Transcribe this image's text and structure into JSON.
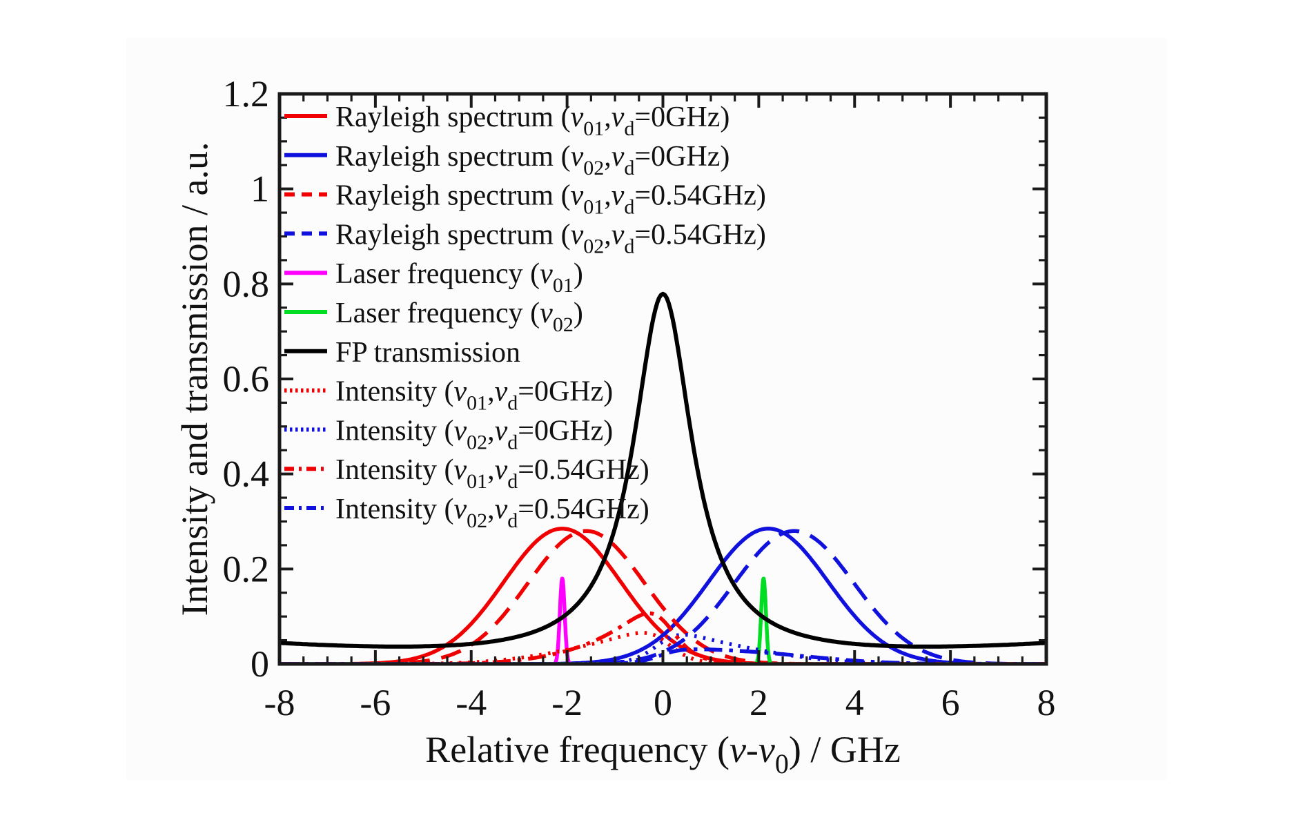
{
  "figure": {
    "background": "#ffffff",
    "panel_color": "#fcfcfc",
    "axis_color": "#1a1a1a"
  },
  "chart_data": {
    "type": "line",
    "title": "",
    "xlabel_parts": [
      [
        "t",
        "Relative frequency ("
      ],
      [
        "i",
        "ν"
      ],
      [
        "t",
        "-"
      ],
      [
        "i",
        "ν"
      ],
      [
        "sub",
        "0"
      ],
      [
        "t",
        ") / GHz"
      ]
    ],
    "ylabel": "Intensity and transmission / a.u.",
    "xlim": [
      -8,
      8
    ],
    "ylim": [
      0,
      1.2
    ],
    "x_tick_values": [
      -8,
      -6,
      -4,
      -2,
      0,
      2,
      4,
      6,
      8
    ],
    "x_tick_labels": [
      "-8",
      "-6",
      "-4",
      "-2",
      "0",
      "2",
      "4",
      "6",
      "8"
    ],
    "y_tick_values": [
      0,
      0.2,
      0.4,
      0.6,
      0.8,
      1,
      1.2
    ],
    "y_tick_labels": [
      "0",
      "0.2",
      "0.4",
      "0.6",
      "0.8",
      "1",
      "1.2"
    ],
    "x_minor_step": 0.5,
    "y_minor_step": 0.05,
    "grid": false,
    "legend_position": "inside-top-left",
    "series": [
      {
        "id": "rayleigh_v01_0",
        "color": "#f00000",
        "line": "solid",
        "width": 5.5,
        "label_parts": [
          [
            "t",
            "Rayleigh spectrum ("
          ],
          [
            "i",
            "ν"
          ],
          [
            "sub",
            "01"
          ],
          [
            "t",
            ","
          ],
          [
            "i",
            "ν"
          ],
          [
            "sub",
            "d"
          ],
          [
            "t",
            "=0GHz)"
          ]
        ],
        "model": {
          "shape": "gaussian",
          "center": -2.1,
          "peak": 0.285,
          "sigma": 1.22
        }
      },
      {
        "id": "rayleigh_v02_0",
        "color": "#1111dd",
        "line": "solid",
        "width": 5.5,
        "label_parts": [
          [
            "t",
            "Rayleigh spectrum ("
          ],
          [
            "i",
            "ν"
          ],
          [
            "sub",
            "02"
          ],
          [
            "t",
            ","
          ],
          [
            "i",
            "ν"
          ],
          [
            "sub",
            "d"
          ],
          [
            "t",
            "=0GHz)"
          ]
        ],
        "model": {
          "shape": "gaussian",
          "center": 2.2,
          "peak": 0.285,
          "sigma": 1.25
        }
      },
      {
        "id": "rayleigh_v01_054",
        "color": "#f00000",
        "line": "dashed",
        "width": 5.5,
        "label_parts": [
          [
            "t",
            "Rayleigh spectrum ("
          ],
          [
            "i",
            "ν"
          ],
          [
            "sub",
            "01"
          ],
          [
            "t",
            ","
          ],
          [
            "i",
            "ν"
          ],
          [
            "sub",
            "d"
          ],
          [
            "t",
            "=0.54GHz)"
          ]
        ],
        "model": {
          "shape": "gaussian",
          "center": -1.6,
          "peak": 0.28,
          "sigma": 1.22
        }
      },
      {
        "id": "rayleigh_v02_054",
        "color": "#1111dd",
        "line": "dashed",
        "width": 5.5,
        "label_parts": [
          [
            "t",
            "Rayleigh spectrum ("
          ],
          [
            "i",
            "ν"
          ],
          [
            "sub",
            "02"
          ],
          [
            "t",
            ","
          ],
          [
            "i",
            "ν"
          ],
          [
            "sub",
            "d"
          ],
          [
            "t",
            "=0.54GHz)"
          ]
        ],
        "model": {
          "shape": "gaussian",
          "center": 2.74,
          "peak": 0.28,
          "sigma": 1.25
        }
      },
      {
        "id": "laser_v01",
        "color": "#ff00ff",
        "line": "solid",
        "width": 5.5,
        "label_parts": [
          [
            "t",
            "Laser frequency ("
          ],
          [
            "i",
            "ν"
          ],
          [
            "sub",
            "01"
          ],
          [
            "t",
            ")"
          ]
        ],
        "model": {
          "shape": "gaussian",
          "center": -2.1,
          "peak": 0.18,
          "sigma": 0.05
        }
      },
      {
        "id": "laser_v02",
        "color": "#00dd22",
        "line": "solid",
        "width": 5.5,
        "label_parts": [
          [
            "t",
            "Laser frequency ("
          ],
          [
            "i",
            "ν"
          ],
          [
            "sub",
            "02"
          ],
          [
            "t",
            ")"
          ]
        ],
        "model": {
          "shape": "gaussian",
          "center": 2.1,
          "peak": 0.18,
          "sigma": 0.05
        }
      },
      {
        "id": "fp",
        "color": "#000000",
        "line": "solid",
        "width": 6,
        "label_parts": [
          [
            "t",
            "FP transmission"
          ]
        ],
        "model": {
          "shape": "airy",
          "center": 0,
          "amp": 0.77,
          "gamma": 0.75,
          "bg0": 0.009,
          "bg2": 0.00045,
          "peak": 0.78
        }
      },
      {
        "id": "int_v01_0",
        "color": "#f00000",
        "line": "dotted",
        "width": 5.5,
        "label_parts": [
          [
            "t",
            "Intensity ("
          ],
          [
            "i",
            "ν"
          ],
          [
            "sub",
            "01"
          ],
          [
            "t",
            ","
          ],
          [
            "i",
            "ν"
          ],
          [
            "sub",
            "d"
          ],
          [
            "t",
            "=0GHz)"
          ]
        ],
        "model": {
          "shape": "product",
          "factors": [
            "rayleigh_v01_0",
            "fp"
          ],
          "peak": 0.07,
          "peak_x": -0.5
        }
      },
      {
        "id": "int_v02_0",
        "color": "#1111dd",
        "line": "dotted",
        "width": 5.5,
        "label_parts": [
          [
            "t",
            "Intensity ("
          ],
          [
            "i",
            "ν"
          ],
          [
            "sub",
            "02"
          ],
          [
            "t",
            ","
          ],
          [
            "i",
            "ν"
          ],
          [
            "sub",
            "d"
          ],
          [
            "t",
            "=0GHz)"
          ]
        ],
        "model": {
          "shape": "product",
          "factors": [
            "rayleigh_v02_0",
            "fp"
          ],
          "peak": 0.058,
          "peak_x": 0.55
        }
      },
      {
        "id": "int_v01_054",
        "color": "#f00000",
        "line": "dashdot",
        "width": 5.5,
        "label_parts": [
          [
            "t",
            "Intensity ("
          ],
          [
            "i",
            "ν"
          ],
          [
            "sub",
            "01"
          ],
          [
            "t",
            ","
          ],
          [
            "i",
            "ν"
          ],
          [
            "sub",
            "d"
          ],
          [
            "t",
            "=0.54GHz)"
          ]
        ],
        "model": {
          "shape": "product",
          "factors": [
            "rayleigh_v01_054",
            "fp"
          ],
          "peak": 0.108,
          "peak_x": -0.3
        }
      },
      {
        "id": "int_v02_054",
        "color": "#1111dd",
        "line": "dashdot",
        "width": 5.5,
        "label_parts": [
          [
            "t",
            "Intensity ("
          ],
          [
            "i",
            "ν"
          ],
          [
            "sub",
            "02"
          ],
          [
            "t",
            ","
          ],
          [
            "i",
            "ν"
          ],
          [
            "sub",
            "d"
          ],
          [
            "t",
            "=0.54GHz)"
          ]
        ],
        "model": {
          "shape": "product",
          "factors": [
            "rayleigh_v02_054",
            "fp"
          ],
          "peak": 0.03,
          "peak_x": 1.2
        }
      }
    ]
  }
}
